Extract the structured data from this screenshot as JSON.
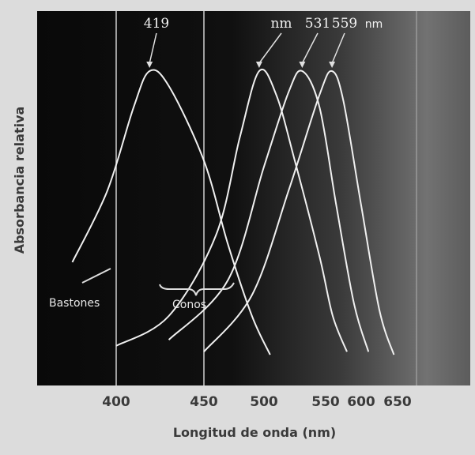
{
  "chart_data": {
    "type": "line",
    "xlabel": "Longitud de onda (nm)",
    "ylabel": "Absorbancia relativa",
    "x_ticks": [
      "400",
      "450",
      "500",
      "550",
      "600",
      "650"
    ],
    "peak_labels": [
      {
        "text": "419",
        "unit": ""
      },
      {
        "text": "nm",
        "unit": ""
      },
      {
        "text": "531",
        "unit": ""
      },
      {
        "text": "559",
        "unit": "nm"
      }
    ],
    "annotations": {
      "rods": "Bastones",
      "cones": "Conos"
    },
    "series": [
      {
        "peak_nm": 419,
        "points": [
          [
            375,
            0.36
          ],
          [
            395,
            0.6
          ],
          [
            410,
            0.88
          ],
          [
            419,
            1.0
          ],
          [
            430,
            0.95
          ],
          [
            450,
            0.7
          ],
          [
            470,
            0.42
          ],
          [
            490,
            0.18
          ],
          [
            505,
            0.05
          ]
        ]
      },
      {
        "peak_nm": 496,
        "points": [
          [
            400,
            0.08
          ],
          [
            430,
            0.18
          ],
          [
            460,
            0.45
          ],
          [
            480,
            0.78
          ],
          [
            496,
            1.0
          ],
          [
            510,
            0.92
          ],
          [
            525,
            0.7
          ],
          [
            545,
            0.38
          ],
          [
            560,
            0.18
          ],
          [
            580,
            0.06
          ]
        ]
      },
      {
        "peak_nm": 531,
        "points": [
          [
            430,
            0.1
          ],
          [
            470,
            0.3
          ],
          [
            500,
            0.68
          ],
          [
            520,
            0.93
          ],
          [
            531,
            1.0
          ],
          [
            545,
            0.88
          ],
          [
            565,
            0.55
          ],
          [
            590,
            0.22
          ],
          [
            610,
            0.06
          ]
        ]
      },
      {
        "peak_nm": 559,
        "points": [
          [
            450,
            0.06
          ],
          [
            490,
            0.25
          ],
          [
            520,
            0.6
          ],
          [
            545,
            0.92
          ],
          [
            559,
            1.0
          ],
          [
            575,
            0.9
          ],
          [
            600,
            0.55
          ],
          [
            625,
            0.2
          ],
          [
            645,
            0.05
          ]
        ]
      }
    ],
    "grid": true,
    "colors": {
      "background_dark": "#0b0b0b",
      "background_light": "#6e6e6e",
      "curves": "#f0f0f0",
      "frame": "#dcdcdc"
    }
  }
}
